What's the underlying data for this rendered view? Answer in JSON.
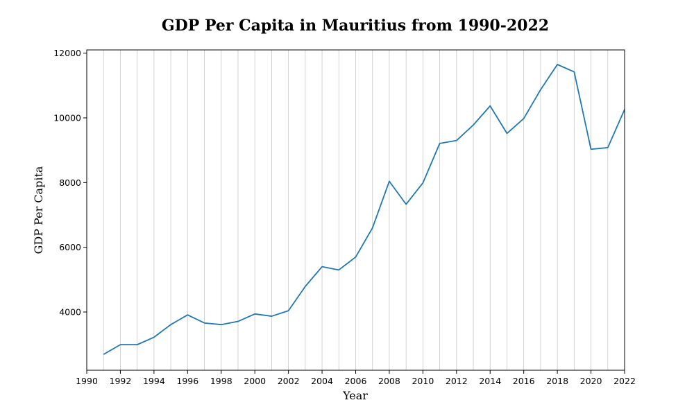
{
  "chart_data": {
    "type": "line",
    "title": "GDP Per Capita in Mauritius from 1990-2022",
    "xlabel": "Year",
    "ylabel": "GDP Per Capita",
    "xlim": [
      1990,
      2022
    ],
    "ylim": [
      2200,
      12100
    ],
    "x_ticks": [
      1990,
      1992,
      1994,
      1996,
      1998,
      2000,
      2002,
      2004,
      2006,
      2008,
      2010,
      2012,
      2014,
      2016,
      2018,
      2020,
      2022
    ],
    "y_ticks": [
      4000,
      6000,
      8000,
      10000,
      12000
    ],
    "grid": "vertical, every year",
    "legend": "none",
    "series": [
      {
        "color": "#1f77b4",
        "x": [
          1991,
          1992,
          1993,
          1994,
          1995,
          1996,
          1997,
          1998,
          1999,
          2000,
          2001,
          2002,
          2003,
          2004,
          2005,
          2006,
          2007,
          2008,
          2009,
          2010,
          2011,
          2012,
          2013,
          2014,
          2015,
          2016,
          2017,
          2018,
          2019,
          2020,
          2021,
          2022
        ],
        "values": [
          2690,
          2990,
          2990,
          3220,
          3610,
          3910,
          3660,
          3610,
          3710,
          3940,
          3870,
          4040,
          4790,
          5400,
          5300,
          5700,
          6600,
          8040,
          7330,
          7990,
          9210,
          9300,
          9780,
          10370,
          9520,
          9980,
          10870,
          11650,
          11420,
          9030,
          9080,
          10260
        ]
      }
    ]
  }
}
